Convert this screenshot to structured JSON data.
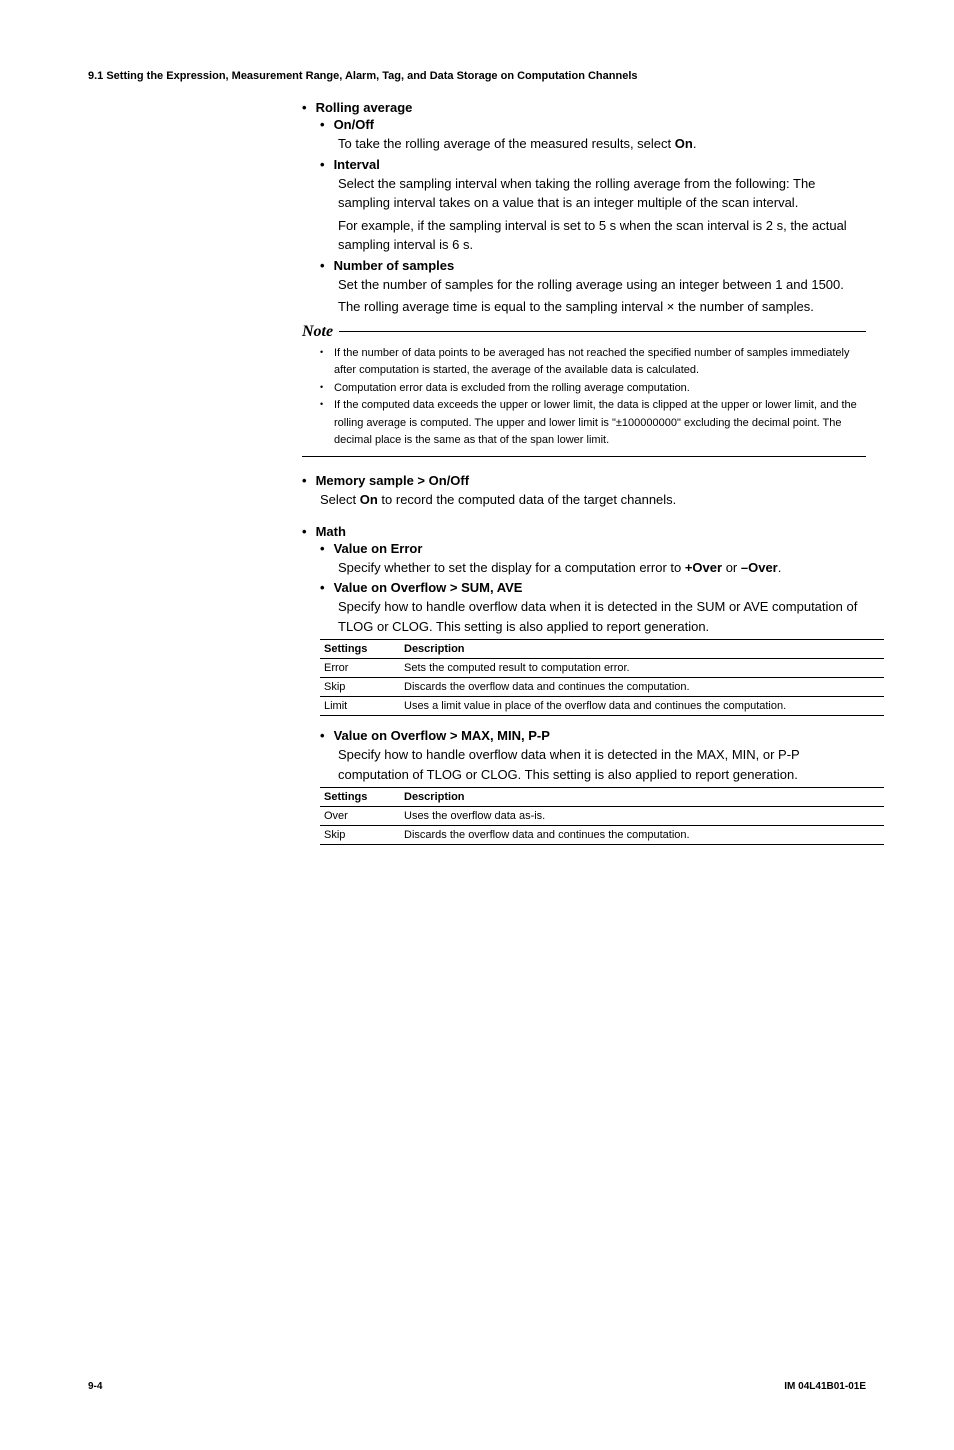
{
  "header": "9.1  Setting the Expression, Measurement Range, Alarm, Tag, and Data Storage on Computation Channels",
  "rolling": {
    "title": "Rolling average",
    "onoff": {
      "title": "On/Off",
      "text1": "To take the rolling average of the measured results, select ",
      "bold1": "On",
      "text2": "."
    },
    "interval": {
      "title": "Interval",
      "p1": "Select the sampling interval when taking the rolling average from the following: The sampling interval takes on a value that is an integer multiple of the scan interval.",
      "p2": "For example, if the sampling interval is set to 5 s when the scan interval is 2 s, the actual sampling interval is 6 s."
    },
    "samples": {
      "title": "Number of samples",
      "p1": "Set the number of samples for the rolling average using an integer between 1 and 1500.",
      "p2": "The rolling average time is equal to the sampling interval × the number of samples."
    }
  },
  "note": {
    "label": "Note",
    "items": [
      "If the number of data points to be averaged has not reached the specified number of samples immediately after computation is started, the average of the available data is calculated.",
      "Computation error data is excluded from the rolling average computation.",
      "If the computed data exceeds the upper or lower limit, the data is clipped at the upper or lower limit, and the rolling average is computed. The upper and lower limit is \"±100000000\" excluding the decimal point. The decimal place is the same as that of the span lower limit."
    ]
  },
  "memory": {
    "title": "Memory sample > On/Off",
    "text1": "Select ",
    "bold1": "On",
    "text2": "  to record the computed data of the target channels."
  },
  "math": {
    "title": "Math",
    "valueError": {
      "title": "Value on Error",
      "text1": "Specify whether to set the display for a computation error to ",
      "bold1": "+Over",
      "text2": " or ",
      "bold2": "–Over",
      "text3": "."
    },
    "sumave": {
      "title": "Value on Overflow > SUM, AVE",
      "p1": "Specify how to handle overflow data when it is detected in the SUM or AVE computation of TLOG or CLOG. This setting is also applied to report generation.",
      "headers": {
        "c1": "Settings",
        "c2": "Description"
      },
      "rows": [
        {
          "c1": "Error",
          "c2": "Sets the computed result to computation error."
        },
        {
          "c1": "Skip",
          "c2": "Discards the overflow data and continues the computation."
        },
        {
          "c1": "Limit",
          "c2": "Uses a limit value in place of the overflow data and continues the computation."
        }
      ]
    },
    "maxmin": {
      "title": "Value on Overflow > MAX, MIN, P-P",
      "p1": "Specify how to handle overflow data when it is detected in the MAX, MIN, or P-P computation of TLOG or CLOG. This setting is also applied to report generation.",
      "headers": {
        "c1": "Settings",
        "c2": "Description"
      },
      "rows": [
        {
          "c1": "Over",
          "c2": "Uses the overflow data as-is."
        },
        {
          "c1": "Skip",
          "c2": "Discards the overflow data and continues the computation."
        }
      ]
    }
  },
  "footer": {
    "page": "9-4",
    "doc": "IM 04L41B01-01E"
  }
}
